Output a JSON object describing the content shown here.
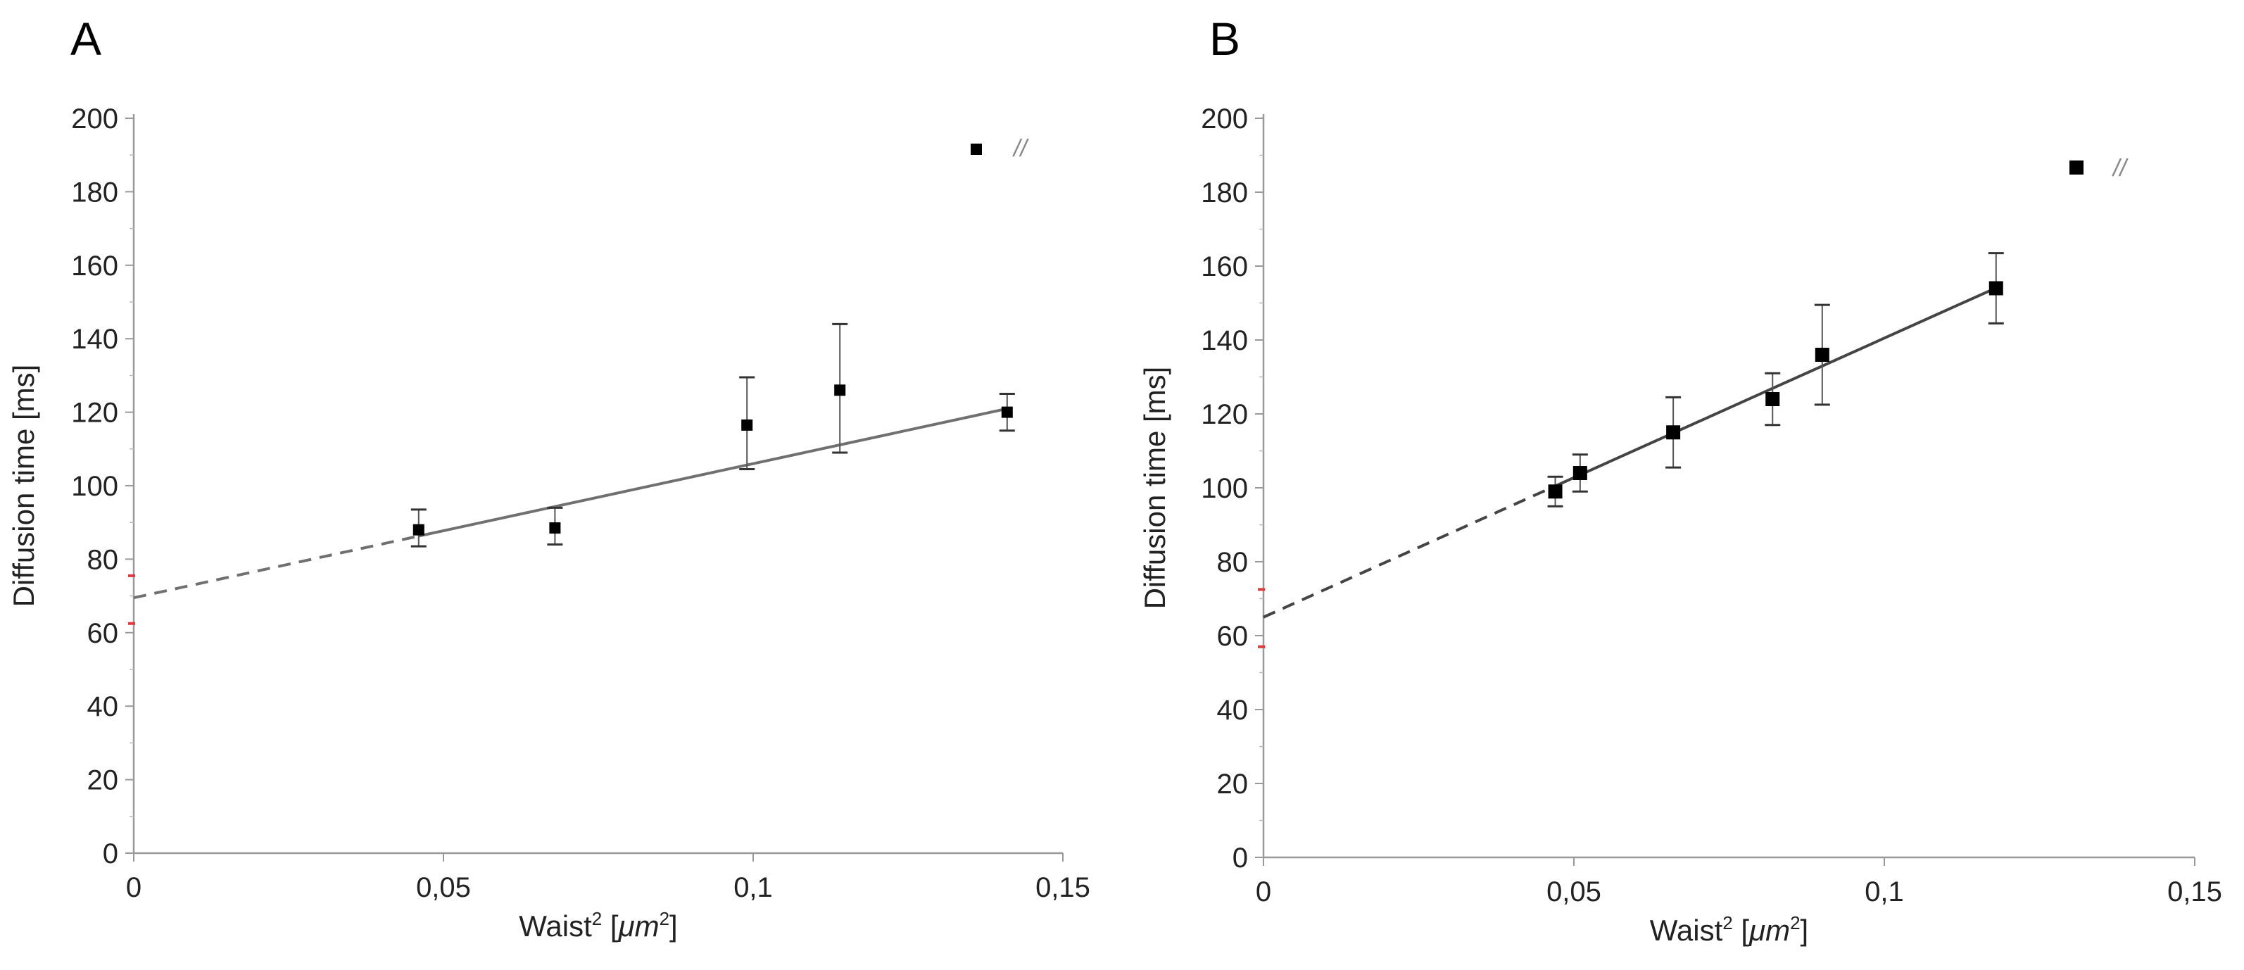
{
  "chart_data": [
    {
      "panel_label": "A",
      "type": "scatter",
      "xlabel": "Waist",
      "xlabel_superscript": "2",
      "xlabel_unit_open": " [",
      "xlabel_unit": "μm",
      "xlabel_unit_superscript": "2",
      "xlabel_unit_close": "]",
      "ylabel": "Diffusion time [ms]",
      "xlim": [
        0,
        0.15
      ],
      "ylim": [
        0,
        200
      ],
      "x_ticks": [
        0,
        0.05,
        0.1,
        0.15
      ],
      "x_tick_labels": [
        "0",
        "0,05",
        "0,1",
        "0,15"
      ],
      "y_ticks": [
        0,
        20,
        40,
        60,
        80,
        100,
        120,
        140,
        160,
        180,
        200
      ],
      "y_tick_labels": [
        "0",
        "20",
        "40",
        "60",
        "80",
        "100",
        "120",
        "140",
        "160",
        "180",
        "200"
      ],
      "legend_position": "top-right",
      "legend_label": "//",
      "series": [
        {
          "name": "//",
          "x": [
            0.046,
            0.068,
            0.099,
            0.114,
            0.141
          ],
          "y": [
            88,
            88.5,
            116.5,
            126,
            120
          ],
          "err_low": [
            4.5,
            4.5,
            12,
            17,
            5
          ],
          "err_high": [
            5.5,
            5.5,
            13,
            18,
            5
          ]
        }
      ],
      "fit": {
        "slope": 365,
        "intercept": 69.5,
        "solid_from_x": 0.046,
        "to_x": 0.141
      },
      "intercept_ci": [
        62.5,
        75.5
      ]
    },
    {
      "panel_label": "B",
      "type": "scatter",
      "xlabel": "Waist",
      "xlabel_superscript": "2",
      "xlabel_unit_open": " [",
      "xlabel_unit": "μm",
      "xlabel_unit_superscript": "2",
      "xlabel_unit_close": "]",
      "ylabel": "Diffusion time [ms]",
      "xlim": [
        0,
        0.15
      ],
      "ylim": [
        0,
        200
      ],
      "x_ticks": [
        0,
        0.05,
        0.1,
        0.15
      ],
      "x_tick_labels": [
        "0",
        "0,05",
        "0,1",
        "0,15"
      ],
      "y_ticks": [
        0,
        20,
        40,
        60,
        80,
        100,
        120,
        140,
        160,
        180,
        200
      ],
      "y_tick_labels": [
        "0",
        "20",
        "40",
        "60",
        "80",
        "100",
        "120",
        "140",
        "160",
        "180",
        "200"
      ],
      "legend_position": "top-right",
      "legend_label": "//",
      "series": [
        {
          "name": "//",
          "x": [
            0.047,
            0.051,
            0.066,
            0.082,
            0.09,
            0.118
          ],
          "y": [
            99,
            104,
            115,
            124,
            136,
            154
          ],
          "err_low": [
            4,
            5,
            9.5,
            7,
            13.5,
            9.5
          ],
          "err_high": [
            4,
            5,
            9.5,
            7,
            13.5,
            9.5
          ]
        }
      ],
      "fit": {
        "slope": 755,
        "intercept": 65,
        "solid_from_x": 0.047,
        "to_x": 0.118
      },
      "intercept_ci": [
        57,
        72.5
      ]
    }
  ]
}
